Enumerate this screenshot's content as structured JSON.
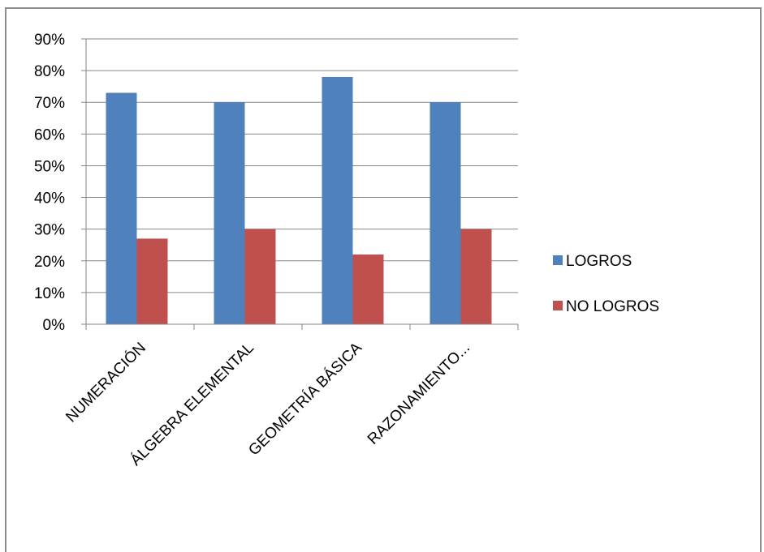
{
  "chart_data": {
    "type": "bar",
    "categories": [
      "NUMERACIÓN",
      "ÁLGEBRA ELEMENTAL",
      "GEOMETRÍA BÁSICA",
      "RAZONAMIENTO..."
    ],
    "series": [
      {
        "name": "LOGROS",
        "values": [
          73,
          70,
          78,
          70
        ],
        "color": "#4F81BD"
      },
      {
        "name": "NO LOGROS",
        "values": [
          27,
          30,
          22,
          30
        ],
        "color": "#C0504D"
      }
    ],
    "ylim": [
      0,
      90
    ],
    "y_ticks": [
      "0%",
      "10%",
      "20%",
      "30%",
      "40%",
      "50%",
      "60%",
      "70%",
      "80%",
      "90%"
    ],
    "y_unit": "%",
    "grid": true,
    "legend_position": "right",
    "title": "",
    "xlabel": "",
    "ylabel": ""
  }
}
